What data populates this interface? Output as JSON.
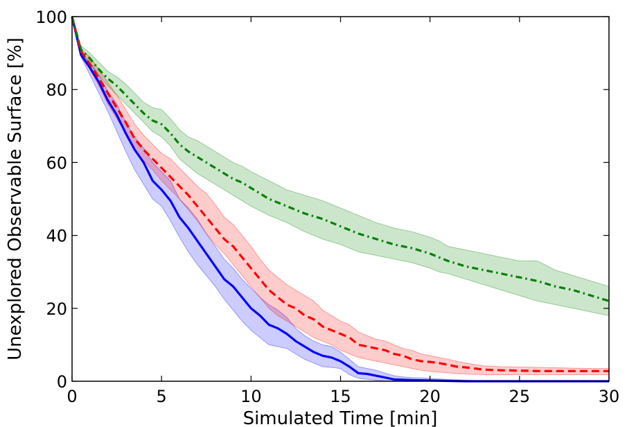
{
  "chart_data": {
    "type": "line",
    "title": "",
    "xlabel": "Simulated Time [min]",
    "ylabel": "Unexplored Observable Surface [%]",
    "xlim": [
      0,
      30
    ],
    "ylim": [
      0,
      100
    ],
    "xticks": [
      0,
      5,
      10,
      15,
      20,
      25,
      30
    ],
    "yticks": [
      0,
      20,
      40,
      60,
      80,
      100
    ],
    "grid": false,
    "legend": "none",
    "series": [
      {
        "name": "blue-solid",
        "color": "#0000ff",
        "linestyle": "solid",
        "x": [
          0,
          0.5,
          1,
          1.5,
          2,
          2.5,
          3,
          3.5,
          4,
          4.5,
          5,
          5.5,
          6,
          6.5,
          7,
          7.5,
          8,
          8.5,
          9,
          9.5,
          10,
          10.5,
          11,
          11.5,
          12,
          12.5,
          13,
          13.5,
          14,
          14.5,
          15,
          15.5,
          16,
          16.5,
          17,
          17.5,
          18,
          18.5,
          19,
          20,
          21,
          22,
          23,
          24,
          25,
          26,
          27,
          28,
          29,
          30
        ],
        "values": [
          100,
          89.5,
          86,
          82,
          77,
          73,
          68,
          63.5,
          60,
          55,
          52.5,
          49.5,
          45,
          42,
          38.5,
          35,
          31.5,
          28,
          26,
          23,
          20,
          18,
          15.5,
          14.5,
          13,
          11,
          9.5,
          8,
          7,
          6.5,
          5.5,
          4,
          2.2,
          2,
          1.5,
          1,
          0.5,
          0.4,
          0.3,
          0.2,
          0.1,
          0,
          0,
          0,
          0,
          0,
          0,
          0,
          0,
          0
        ],
        "lower": [
          100,
          89,
          84,
          79,
          74,
          68.5,
          63,
          58,
          54,
          50,
          48,
          44,
          39.5,
          35.5,
          32,
          29,
          26,
          22.5,
          19.5,
          16.5,
          14,
          12,
          10,
          9.5,
          9,
          7.5,
          6,
          5,
          4,
          3.8,
          3.5,
          1.8,
          0.8,
          0.5,
          0.3,
          0.1,
          0,
          0,
          0,
          0,
          0,
          0,
          0,
          0,
          0,
          0,
          0,
          0,
          0,
          0
        ],
        "upper": [
          100,
          90,
          87.5,
          84,
          79.5,
          76,
          71,
          67,
          64,
          60,
          57.5,
          55,
          50,
          47.5,
          44.5,
          40.5,
          37,
          33.5,
          31,
          28,
          25.5,
          23,
          21,
          19.5,
          17.5,
          14.5,
          12.5,
          11,
          10,
          9.5,
          8,
          6,
          4,
          3.5,
          3,
          2.2,
          1.5,
          1.2,
          1,
          0.8,
          0.5,
          0.3,
          0.1,
          0,
          0,
          0,
          0,
          0,
          0,
          0
        ]
      },
      {
        "name": "red-dashed",
        "color": "#ff0000",
        "linestyle": "dashed",
        "x": [
          0,
          0.5,
          1,
          1.5,
          2,
          2.5,
          3,
          3.5,
          4,
          4.5,
          5,
          5.5,
          6,
          6.5,
          7,
          7.5,
          8,
          8.5,
          9,
          9.5,
          10,
          10.5,
          11,
          11.5,
          12,
          12.5,
          13,
          13.5,
          14,
          14.5,
          15,
          15.5,
          16,
          16.5,
          17,
          17.5,
          18,
          18.5,
          19,
          19.5,
          20,
          20.5,
          21,
          21.5,
          22,
          23,
          24,
          25,
          26,
          27,
          28,
          29,
          30
        ],
        "values": [
          100,
          90.5,
          87,
          83,
          79,
          75,
          71,
          66.5,
          63.5,
          61,
          58.5,
          56,
          53.5,
          51,
          48,
          45,
          42,
          39,
          37,
          34,
          31,
          28,
          25,
          23,
          21,
          20,
          18,
          17,
          15,
          14,
          13,
          12,
          10,
          9.5,
          9,
          8.5,
          7.5,
          7,
          6,
          5.5,
          5.3,
          5,
          4.5,
          4,
          3.8,
          3.2,
          3,
          2.9,
          2.8,
          2.8,
          2.8,
          2.8,
          2.8
        ],
        "lower": [
          100,
          90,
          85.5,
          81,
          76,
          72,
          68,
          63.5,
          60.5,
          58,
          55,
          52.5,
          50,
          47,
          44,
          40.5,
          37.5,
          35,
          32,
          29,
          26,
          23,
          20,
          18,
          16.5,
          15,
          13.5,
          12,
          11,
          10,
          8.5,
          7.5,
          6.5,
          6,
          5.5,
          5,
          4.5,
          4,
          3.5,
          3,
          2.7,
          2.5,
          2.3,
          2.1,
          2,
          1.8,
          1.8,
          1.8,
          1.8,
          1.8,
          1.8,
          1.8,
          1.8
        ],
        "upper": [
          100,
          91,
          89,
          85.5,
          82,
          78.5,
          74.5,
          70.5,
          67.5,
          65,
          62.5,
          61,
          58.5,
          56,
          53.5,
          51.5,
          48.5,
          45,
          43,
          40,
          37,
          33.5,
          30.5,
          28.5,
          26.5,
          25,
          23.5,
          22,
          19.5,
          18,
          16.5,
          15.5,
          13.5,
          12.5,
          11.5,
          11,
          10,
          9,
          8.5,
          7.5,
          7,
          6.5,
          6,
          5.5,
          5,
          4.2,
          4,
          3.9,
          3.8,
          3.7,
          3.6,
          3.5,
          3.5
        ]
      },
      {
        "name": "green-dashdot",
        "color": "#008000",
        "linestyle": "dashdot",
        "x": [
          0,
          0.5,
          1,
          1.5,
          2,
          2.5,
          3,
          3.5,
          4,
          4.5,
          5,
          5.5,
          6,
          6.5,
          7,
          7.5,
          8,
          8.5,
          9,
          9.5,
          10,
          11,
          12,
          13,
          14,
          15,
          16,
          17,
          18,
          19,
          20,
          20.5,
          21,
          22,
          23,
          24,
          25,
          26,
          27,
          28,
          29,
          30
        ],
        "values": [
          100,
          91,
          88.5,
          85.5,
          83,
          81,
          78.5,
          76,
          73.5,
          71.5,
          70.5,
          68,
          65,
          63,
          61.5,
          60,
          58.5,
          57,
          55.5,
          54.5,
          53,
          50,
          48,
          46,
          44.5,
          42.5,
          40.5,
          39,
          37.5,
          36.5,
          35,
          34,
          33,
          31.5,
          30.5,
          29.5,
          28.5,
          27.5,
          26,
          25,
          23.5,
          22
        ],
        "lower": [
          100,
          90,
          87,
          84,
          81,
          78.5,
          76,
          73.5,
          71,
          68.5,
          67,
          64.5,
          61,
          59,
          57,
          55.5,
          54,
          52.5,
          51,
          49.5,
          48,
          45.5,
          43.5,
          41,
          39,
          37.5,
          35.5,
          34.5,
          33.5,
          32.5,
          31,
          30,
          29.5,
          28,
          26.5,
          25,
          23.5,
          22,
          21,
          20,
          19,
          18
        ],
        "upper": [
          100,
          92,
          90,
          87.5,
          85,
          83.5,
          81.5,
          79,
          76.5,
          75,
          74.5,
          72,
          69,
          67,
          66,
          64.5,
          63,
          61.5,
          60,
          59,
          57.5,
          55,
          52.5,
          51,
          49.5,
          47.5,
          45.5,
          43.5,
          42,
          41,
          39.5,
          38.5,
          37,
          36,
          35,
          34,
          33,
          33,
          30.5,
          29,
          27.5,
          26
        ]
      }
    ]
  }
}
